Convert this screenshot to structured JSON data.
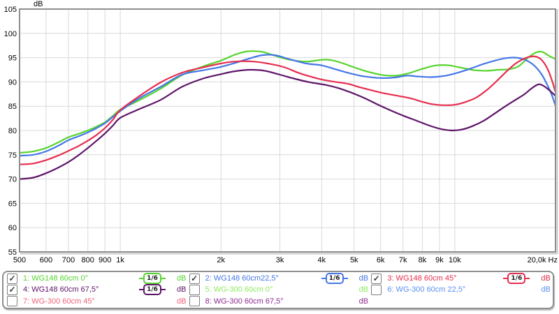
{
  "chart_data": {
    "type": "line",
    "title": "",
    "ylabel": "dB",
    "xlabel": "Hz",
    "xscale": "log",
    "grid": true,
    "legend_position": "bottom",
    "xlim": [
      500,
      20000
    ],
    "ylim": [
      55,
      105
    ],
    "y_ticks": [
      105,
      100,
      95,
      90,
      85,
      80,
      75,
      70,
      65,
      60,
      55
    ],
    "x_ticks": [
      {
        "f": 500,
        "label": "500"
      },
      {
        "f": 600,
        "label": "600"
      },
      {
        "f": 700,
        "label": "700"
      },
      {
        "f": 800,
        "label": "800"
      },
      {
        "f": 900,
        "label": "900"
      },
      {
        "f": 1000,
        "label": "1k"
      },
      {
        "f": 2000,
        "label": "2k"
      },
      {
        "f": 3000,
        "label": "3k"
      },
      {
        "f": 4000,
        "label": "4k"
      },
      {
        "f": 5000,
        "label": "5k"
      },
      {
        "f": 6000,
        "label": "6k"
      },
      {
        "f": 7000,
        "label": "7k"
      },
      {
        "f": 8000,
        "label": "8k"
      },
      {
        "f": 9000,
        "label": "9k"
      },
      {
        "f": 10000,
        "label": "10k"
      },
      {
        "f": 20000,
        "label": "20,0k Hz"
      }
    ],
    "series": [
      {
        "name": "1: WG148 60cm 0°",
        "color": "#55d42c",
        "points": [
          [
            500,
            75.4
          ],
          [
            550,
            75.7
          ],
          [
            600,
            76.4
          ],
          [
            650,
            77.5
          ],
          [
            700,
            78.6
          ],
          [
            750,
            79.3
          ],
          [
            800,
            80.0
          ],
          [
            850,
            80.8
          ],
          [
            900,
            81.7
          ],
          [
            950,
            83.0
          ],
          [
            1000,
            84.3
          ],
          [
            1130,
            86.1
          ],
          [
            1320,
            88.6
          ],
          [
            1530,
            91.4
          ],
          [
            1770,
            93.2
          ],
          [
            2000,
            94.4
          ],
          [
            2200,
            95.6
          ],
          [
            2400,
            96.3
          ],
          [
            2650,
            96.2
          ],
          [
            2900,
            95.4
          ],
          [
            3200,
            94.6
          ],
          [
            3600,
            94.2
          ],
          [
            4100,
            94.6
          ],
          [
            4500,
            94.1
          ],
          [
            5000,
            93.0
          ],
          [
            5500,
            92.1
          ],
          [
            6100,
            91.4
          ],
          [
            6700,
            91.3
          ],
          [
            7300,
            91.8
          ],
          [
            8000,
            92.7
          ],
          [
            8800,
            93.4
          ],
          [
            9600,
            93.4
          ],
          [
            10500,
            92.9
          ],
          [
            11500,
            92.4
          ],
          [
            12500,
            92.3
          ],
          [
            13500,
            92.5
          ],
          [
            14500,
            92.6
          ],
          [
            15500,
            93.2
          ],
          [
            16500,
            94.9
          ],
          [
            17400,
            96.0
          ],
          [
            18200,
            96.2
          ],
          [
            19100,
            95.4
          ],
          [
            20000,
            94.7
          ]
        ]
      },
      {
        "name": "2: WG148 60cm22,5°",
        "color": "#4577e6",
        "points": [
          [
            500,
            74.8
          ],
          [
            550,
            75.0
          ],
          [
            600,
            75.7
          ],
          [
            650,
            76.8
          ],
          [
            700,
            78.0
          ],
          [
            750,
            78.8
          ],
          [
            800,
            79.6
          ],
          [
            850,
            80.5
          ],
          [
            900,
            81.5
          ],
          [
            950,
            82.8
          ],
          [
            1000,
            84.0
          ],
          [
            1130,
            86.5
          ],
          [
            1320,
            89.0
          ],
          [
            1530,
            91.5
          ],
          [
            1770,
            92.4
          ],
          [
            2000,
            93.1
          ],
          [
            2200,
            93.9
          ],
          [
            2400,
            94.7
          ],
          [
            2650,
            95.5
          ],
          [
            2900,
            95.5
          ],
          [
            3200,
            94.7
          ],
          [
            3600,
            93.8
          ],
          [
            4000,
            93.4
          ],
          [
            4400,
            92.6
          ],
          [
            4900,
            91.7
          ],
          [
            5400,
            91.1
          ],
          [
            6000,
            90.8
          ],
          [
            6600,
            90.9
          ],
          [
            7200,
            91.3
          ],
          [
            7800,
            91.1
          ],
          [
            8600,
            91.0
          ],
          [
            9400,
            91.3
          ],
          [
            10200,
            91.9
          ],
          [
            11200,
            92.8
          ],
          [
            12200,
            93.7
          ],
          [
            13200,
            94.4
          ],
          [
            14200,
            94.9
          ],
          [
            15200,
            95.0
          ],
          [
            16000,
            94.7
          ],
          [
            16800,
            94.0
          ],
          [
            17500,
            93.0
          ],
          [
            18200,
            91.5
          ],
          [
            18900,
            89.4
          ],
          [
            19500,
            87.3
          ],
          [
            20000,
            85.1
          ]
        ]
      },
      {
        "name": "3: WG148 60cm 45°",
        "color": "#e62e4e",
        "points": [
          [
            500,
            73.0
          ],
          [
            550,
            73.2
          ],
          [
            600,
            73.9
          ],
          [
            650,
            74.8
          ],
          [
            700,
            75.8
          ],
          [
            750,
            76.8
          ],
          [
            800,
            77.9
          ],
          [
            850,
            79.1
          ],
          [
            900,
            80.5
          ],
          [
            950,
            82.2
          ],
          [
            1000,
            84.2
          ],
          [
            1130,
            86.9
          ],
          [
            1320,
            89.9
          ],
          [
            1530,
            91.9
          ],
          [
            1770,
            93.0
          ],
          [
            2000,
            93.8
          ],
          [
            2200,
            94.2
          ],
          [
            2500,
            94.2
          ],
          [
            2800,
            93.7
          ],
          [
            3100,
            93.0
          ],
          [
            3400,
            91.9
          ],
          [
            3700,
            91.1
          ],
          [
            4000,
            90.5
          ],
          [
            4400,
            90.0
          ],
          [
            4800,
            89.6
          ],
          [
            5200,
            88.9
          ],
          [
            5700,
            88.2
          ],
          [
            6200,
            87.6
          ],
          [
            6800,
            87.1
          ],
          [
            7400,
            86.6
          ],
          [
            8000,
            85.9
          ],
          [
            8600,
            85.4
          ],
          [
            9300,
            85.2
          ],
          [
            10000,
            85.3
          ],
          [
            10800,
            85.9
          ],
          [
            11600,
            86.8
          ],
          [
            12500,
            88.4
          ],
          [
            13400,
            90.3
          ],
          [
            14300,
            92.2
          ],
          [
            15200,
            93.8
          ],
          [
            16000,
            94.7
          ],
          [
            16800,
            95.2
          ],
          [
            17500,
            95.2
          ],
          [
            18200,
            94.5
          ],
          [
            18900,
            92.8
          ],
          [
            19500,
            90.4
          ],
          [
            20000,
            87.9
          ]
        ]
      },
      {
        "name": "4: WG148 60cm 67,5°",
        "color": "#5e1468",
        "points": [
          [
            500,
            70.0
          ],
          [
            550,
            70.3
          ],
          [
            600,
            71.2
          ],
          [
            650,
            72.3
          ],
          [
            700,
            73.5
          ],
          [
            750,
            74.9
          ],
          [
            800,
            76.4
          ],
          [
            850,
            77.9
          ],
          [
            900,
            79.4
          ],
          [
            950,
            81.0
          ],
          [
            1000,
            82.6
          ],
          [
            1130,
            84.3
          ],
          [
            1320,
            86.3
          ],
          [
            1530,
            89.0
          ],
          [
            1770,
            90.7
          ],
          [
            2000,
            91.6
          ],
          [
            2200,
            92.2
          ],
          [
            2450,
            92.5
          ],
          [
            2700,
            92.3
          ],
          [
            3000,
            91.5
          ],
          [
            3300,
            90.7
          ],
          [
            3700,
            89.9
          ],
          [
            4100,
            89.4
          ],
          [
            4500,
            88.7
          ],
          [
            4900,
            87.8
          ],
          [
            5400,
            86.6
          ],
          [
            5900,
            85.3
          ],
          [
            6500,
            84.0
          ],
          [
            7100,
            82.9
          ],
          [
            7700,
            82.0
          ],
          [
            8400,
            81.0
          ],
          [
            9100,
            80.3
          ],
          [
            9800,
            80.0
          ],
          [
            10500,
            80.2
          ],
          [
            11300,
            80.9
          ],
          [
            12200,
            82.0
          ],
          [
            13100,
            83.4
          ],
          [
            14100,
            84.9
          ],
          [
            15100,
            86.2
          ],
          [
            16100,
            87.4
          ],
          [
            17000,
            88.7
          ],
          [
            17800,
            89.5
          ],
          [
            18500,
            89.1
          ],
          [
            19300,
            88.1
          ],
          [
            20000,
            87.1
          ]
        ]
      }
    ]
  },
  "legend": {
    "items": [
      {
        "label": "1: WG148 60cm 0°",
        "color": "#55d42c",
        "checked": true,
        "check": "✓",
        "smoothing": "1/6",
        "unit": "dB"
      },
      {
        "label": "2: WG148 60cm22,5°",
        "color": "#4577e6",
        "checked": true,
        "check": "✓",
        "smoothing": "1/6",
        "unit": "dB"
      },
      {
        "label": "3: WG148 60cm 45°",
        "color": "#e62e4e",
        "checked": true,
        "check": "✓",
        "smoothing": "1/6",
        "unit": "dB"
      },
      {
        "label": "4: WG148 60cm 67,5°",
        "color": "#5e1468",
        "checked": true,
        "check": "✓",
        "smoothing": "1/6",
        "unit": "dB"
      },
      {
        "label": "5: WG-300 60cm 0°",
        "color": "#8cea5e",
        "checked": false,
        "check": "",
        "smoothing": null,
        "unit": "dB"
      },
      {
        "label": "6: WG-300 60cm 22,5°",
        "color": "#5c8ff2",
        "checked": false,
        "check": "",
        "smoothing": null,
        "unit": "dB"
      },
      {
        "label": "7: WG-300 60cm 45°",
        "color": "#f2637b",
        "checked": false,
        "check": "",
        "smoothing": null,
        "unit": "dB"
      },
      {
        "label": "8: WG-300 60cm 67,5°",
        "color": "#8e2a90",
        "checked": false,
        "check": "",
        "smoothing": null,
        "unit": "dB"
      }
    ]
  },
  "style": {
    "grid_color": "#d9d9d9",
    "frame_color": "#8f8f8f",
    "shadow_color": "#c9c9c9",
    "text_color": "#000000"
  }
}
